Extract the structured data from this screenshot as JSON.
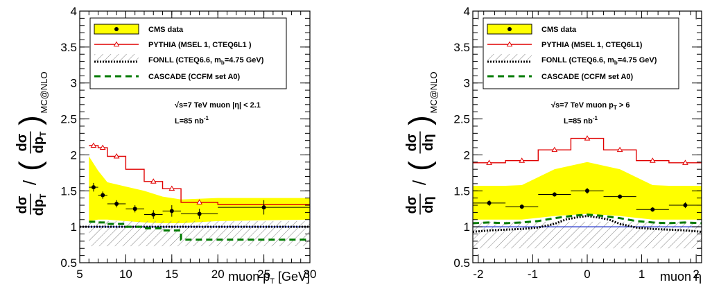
{
  "chart_data": [
    {
      "type": "line",
      "xlabel": "muon p",
      "xlabel_sub": "T",
      "xlabel_unit": " [GeV]",
      "ylabel_text": {
        "d1": "dσ",
        "d2": "dp",
        "d2sub": "T",
        "ref": "MC@NLO"
      },
      "xlim": [
        5,
        30
      ],
      "ylim": [
        0.5,
        4
      ],
      "xticks": [
        5,
        10,
        15,
        20,
        25,
        30
      ],
      "yticks": [
        0.5,
        1,
        1.5,
        2,
        2.5,
        3,
        3.5,
        4
      ],
      "xtick_labels": [
        "5",
        "10",
        "15",
        "20",
        "25",
        "30"
      ],
      "ytick_labels": [
        "0.5",
        "1",
        "1.5",
        "2",
        "2.5",
        "3",
        "3.5",
        "4"
      ],
      "annotations": {
        "line1": "√s=7 TeV   muon |η| < 2.1",
        "line2": "L=85 nb",
        "line2_sup": "-1"
      },
      "legend": {
        "placement": "top",
        "cms": "CMS data",
        "pythia": "PYTHIA (MSEL 1, CTEQ6L1 )",
        "fonll_a": "FONLL (CTEQ6.6, m",
        "fonll_sub": "b",
        "fonll_b": "=4.75 GeV)",
        "cascade": "CASCADE (CCFM set A0)"
      },
      "series": {
        "cms_data": {
          "x": [
            6.5,
            7.5,
            9,
            11,
            13,
            15,
            18,
            25
          ],
          "xerr": [
            0.5,
            0.5,
            1,
            1,
            1,
            1,
            2,
            5
          ],
          "y": [
            1.55,
            1.44,
            1.32,
            1.25,
            1.17,
            1.22,
            1.18,
            1.27
          ],
          "yerr": [
            0.06,
            0.05,
            0.05,
            0.05,
            0.06,
            0.08,
            0.07,
            0.1
          ],
          "band_x": [
            6,
            7,
            8,
            10,
            12,
            14,
            16,
            20,
            30
          ],
          "band_low": [
            1.08,
            1.1,
            1.1,
            1.08,
            1.06,
            1.05,
            1.05,
            1.08,
            1.1
          ],
          "band_high": [
            1.98,
            1.78,
            1.62,
            1.56,
            1.5,
            1.42,
            1.38,
            1.4,
            1.4
          ]
        },
        "pythia": {
          "edges": [
            6,
            7,
            8,
            10,
            12,
            14,
            16,
            20,
            30
          ],
          "values": [
            2.13,
            2.1,
            1.98,
            1.8,
            1.63,
            1.53,
            1.34,
            1.31
          ],
          "markers_x": [
            6.5,
            7.5,
            9,
            13,
            15,
            18
          ]
        },
        "fonll": {
          "edges": [
            5,
            30
          ],
          "values": [
            1.0
          ],
          "band_x": [
            6,
            30
          ],
          "band_low": [
            0.73,
            0.73
          ],
          "band_high": [
            1.08,
            1.08
          ]
        },
        "cascade": {
          "edges": [
            6,
            7,
            8,
            10,
            12,
            14,
            16,
            20,
            30
          ],
          "values": [
            1.07,
            1.06,
            1.04,
            1.0,
            0.98,
            0.95,
            0.82,
            0.82
          ]
        },
        "mcnlo_reference": {
          "value": 1.0
        }
      },
      "colors": {
        "band": "#ffff00",
        "pythia": "#e00000",
        "cascade": "#007a00",
        "fonll": "#000000",
        "reference": "#2233cc"
      }
    },
    {
      "type": "line",
      "xlabel": "muon η",
      "ylabel_text": {
        "d1": "dσ",
        "d2": "dη",
        "d2sub": "",
        "ref": "MC@NLO"
      },
      "xlim": [
        -2.1,
        2.1
      ],
      "ylim": [
        0.5,
        4
      ],
      "xticks": [
        -2,
        -1,
        0,
        1,
        2
      ],
      "yticks": [
        0.5,
        1,
        1.5,
        2,
        2.5,
        3,
        3.5,
        4
      ],
      "xtick_labels": [
        "-2",
        "-1",
        "0",
        "1",
        "2"
      ],
      "ytick_labels": [
        "0.5",
        "1",
        "1.5",
        "2",
        "2.5",
        "3",
        "3.5",
        "4"
      ],
      "annotations": {
        "line1a": "√s=7 TeV   muon p",
        "line1_sub": "T",
        "line1b": " > 6",
        "line2": "L=85 nb",
        "line2_sup": "-1"
      },
      "legend": {
        "placement": "top",
        "cms": "CMS data",
        "pythia": "PYTHIA (MSEL 1, CTEQ6L1)",
        "fonll_a": "FONLL (CTEQ6.6, m",
        "fonll_sub": "b",
        "fonll_b": "=4.75 GeV)",
        "cascade": "CASCADE (CCFM set A0)"
      },
      "series": {
        "cms_data": {
          "x": [
            -1.8,
            -1.2,
            -0.6,
            0,
            0.6,
            1.2,
            1.8
          ],
          "xerr": [
            0.3,
            0.3,
            0.3,
            0.3,
            0.3,
            0.3,
            0.3
          ],
          "y": [
            1.33,
            1.28,
            1.45,
            1.5,
            1.42,
            1.24,
            1.3
          ],
          "yerr": [
            0.04,
            0.03,
            0.03,
            0.04,
            0.03,
            0.03,
            0.04
          ],
          "band_x": [
            -2.1,
            -1.5,
            -1.2,
            -0.6,
            0,
            0.6,
            1.2,
            1.5,
            2.1
          ],
          "band_low": [
            1.1,
            1.1,
            1.1,
            1.15,
            1.18,
            1.15,
            1.1,
            1.1,
            1.1
          ],
          "band_high": [
            1.57,
            1.57,
            1.58,
            1.8,
            1.9,
            1.8,
            1.58,
            1.57,
            1.57
          ]
        },
        "pythia": {
          "edges": [
            -2.1,
            -1.5,
            -0.9,
            -0.3,
            0.3,
            0.9,
            1.5,
            2.1
          ],
          "values": [
            1.89,
            1.92,
            2.07,
            2.23,
            2.07,
            1.92,
            1.89
          ],
          "markers_x": [
            -1.8,
            -1.2,
            -0.6,
            0,
            0.6,
            1.2,
            1.8
          ]
        },
        "fonll": {
          "x": [
            -2.1,
            -1.8,
            -1.5,
            -1.2,
            -0.9,
            -0.6,
            -0.4,
            -0.2,
            0,
            0.2,
            0.4,
            0.6,
            0.9,
            1.2,
            1.5,
            1.8,
            2.1
          ],
          "y": [
            0.93,
            0.95,
            0.96,
            0.97,
            0.99,
            1.04,
            1.1,
            1.13,
            1.15,
            1.13,
            1.1,
            1.04,
            0.99,
            0.97,
            0.96,
            0.95,
            0.93
          ],
          "band_x": [
            -2.1,
            2.1
          ],
          "band_low": [
            0.7,
            0.7
          ],
          "band_high": [
            1.07,
            1.07
          ]
        },
        "cascade": {
          "x": [
            -2.1,
            -1.8,
            -1.5,
            -1.2,
            -0.9,
            -0.6,
            -0.3,
            0,
            0.3,
            0.6,
            0.9,
            1.2,
            1.5,
            1.8,
            2.1
          ],
          "y": [
            1.05,
            1.06,
            1.05,
            1.06,
            1.08,
            1.12,
            1.15,
            1.17,
            1.15,
            1.12,
            1.08,
            1.06,
            1.05,
            1.06,
            1.05
          ]
        },
        "mcnlo_reference": {
          "value": 1.0
        }
      },
      "colors": {
        "band": "#ffff00",
        "pythia": "#e00000",
        "cascade": "#007a00",
        "fonll": "#000000",
        "reference": "#2233cc"
      }
    }
  ]
}
